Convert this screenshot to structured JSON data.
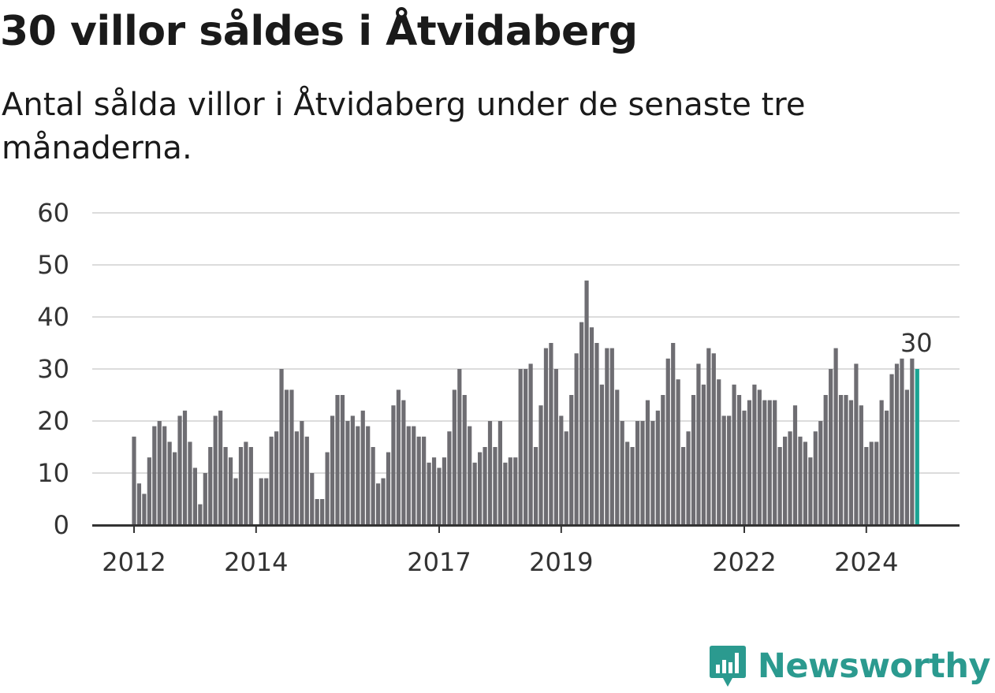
{
  "header": {
    "title": "30 villor såldes i Åtvidaberg",
    "subtitle": "Antal sålda villor i Åtvidaberg under de senaste tre månaderna."
  },
  "branding": {
    "name": "Newsworthy",
    "icon": "newsworthy-logo-icon",
    "color": "#2b9a8f"
  },
  "colors": {
    "bar": "#6e6d72",
    "highlight": "#1aa393",
    "grid": "#dcdcdc",
    "axis": "#333333"
  },
  "chart_data": {
    "type": "bar",
    "title": "30 villor såldes i Åtvidaberg",
    "subtitle": "Antal sålda villor i Åtvidaberg under de senaste tre månaderna.",
    "xlabel": "",
    "ylabel": "",
    "ylim": [
      0,
      60
    ],
    "yticks": [
      0,
      10,
      20,
      30,
      40,
      50,
      60
    ],
    "xticks": [
      "2012",
      "2014",
      "2017",
      "2019",
      "2022",
      "2024"
    ],
    "grid": true,
    "start": "2012-01",
    "frequency": "monthly",
    "values": [
      17,
      8,
      6,
      13,
      19,
      20,
      19,
      16,
      14,
      21,
      22,
      16,
      11,
      4,
      10,
      15,
      21,
      22,
      15,
      13,
      9,
      15,
      16,
      15,
      0,
      9,
      9,
      17,
      18,
      30,
      26,
      26,
      18,
      20,
      17,
      10,
      5,
      5,
      14,
      21,
      25,
      25,
      20,
      21,
      19,
      22,
      19,
      15,
      8,
      9,
      14,
      23,
      26,
      24,
      19,
      19,
      17,
      17,
      12,
      13,
      11,
      13,
      18,
      26,
      30,
      25,
      19,
      12,
      14,
      15,
      20,
      15,
      20,
      12,
      13,
      13,
      30,
      30,
      31,
      15,
      23,
      34,
      35,
      30,
      21,
      18,
      25,
      33,
      39,
      47,
      38,
      35,
      27,
      34,
      34,
      26,
      20,
      16,
      15,
      20,
      20,
      24,
      20,
      22,
      25,
      32,
      35,
      28,
      15,
      18,
      25,
      31,
      27,
      34,
      33,
      28,
      21,
      21,
      27,
      25,
      22,
      24,
      27,
      26,
      24,
      24,
      24,
      15,
      17,
      18,
      23,
      17,
      16,
      13,
      18,
      20,
      25,
      30,
      34,
      25,
      25,
      24,
      31,
      23,
      15,
      16,
      16,
      24,
      22,
      29,
      31,
      32,
      26,
      32,
      30
    ],
    "highlight": {
      "label": "30",
      "value": 30
    }
  }
}
